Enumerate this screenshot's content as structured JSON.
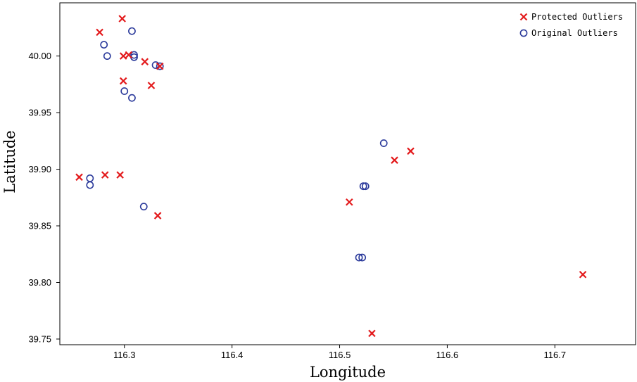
{
  "chart_data": {
    "type": "scatter",
    "xlabel": "Longitude",
    "ylabel": "Latitude",
    "xlim": [
      116.24,
      116.775
    ],
    "ylim": [
      39.745,
      40.047
    ],
    "xticks": [
      116.3,
      116.4,
      116.5,
      116.6,
      116.7
    ],
    "xtick_labels": [
      "116.3",
      "116.4",
      "116.5",
      "116.6",
      "116.7"
    ],
    "yticks": [
      39.75,
      39.8,
      39.85,
      39.9,
      39.95,
      40.0
    ],
    "ytick_labels": [
      "39.75",
      "39.80",
      "39.85",
      "39.90",
      "39.95",
      "40.00"
    ],
    "legend_position": "top-right",
    "series": [
      {
        "name": "Protected Outliers",
        "marker": "x",
        "color": "#e31a1c",
        "points": [
          [
            116.298,
            40.033
          ],
          [
            116.277,
            40.021
          ],
          [
            116.299,
            40.0
          ],
          [
            116.304,
            40.001
          ],
          [
            116.319,
            39.995
          ],
          [
            116.333,
            39.991
          ],
          [
            116.299,
            39.978
          ],
          [
            116.325,
            39.974
          ],
          [
            116.258,
            39.893
          ],
          [
            116.282,
            39.895
          ],
          [
            116.296,
            39.895
          ],
          [
            116.331,
            39.859
          ],
          [
            116.509,
            39.871
          ],
          [
            116.551,
            39.908
          ],
          [
            116.566,
            39.916
          ],
          [
            116.53,
            39.755
          ],
          [
            116.726,
            39.807
          ]
        ]
      },
      {
        "name": "Original Outliers",
        "marker": "o",
        "color": "#2b3a9b",
        "points": [
          [
            116.307,
            40.022
          ],
          [
            116.281,
            40.01
          ],
          [
            116.284,
            40.0
          ],
          [
            116.309,
            40.001
          ],
          [
            116.309,
            39.999
          ],
          [
            116.329,
            39.992
          ],
          [
            116.333,
            39.991
          ],
          [
            116.3,
            39.969
          ],
          [
            116.307,
            39.963
          ],
          [
            116.268,
            39.892
          ],
          [
            116.268,
            39.886
          ],
          [
            116.318,
            39.867
          ],
          [
            116.541,
            39.923
          ],
          [
            116.522,
            39.885
          ],
          [
            116.524,
            39.885
          ],
          [
            116.518,
            39.822
          ],
          [
            116.521,
            39.822
          ]
        ]
      }
    ]
  }
}
